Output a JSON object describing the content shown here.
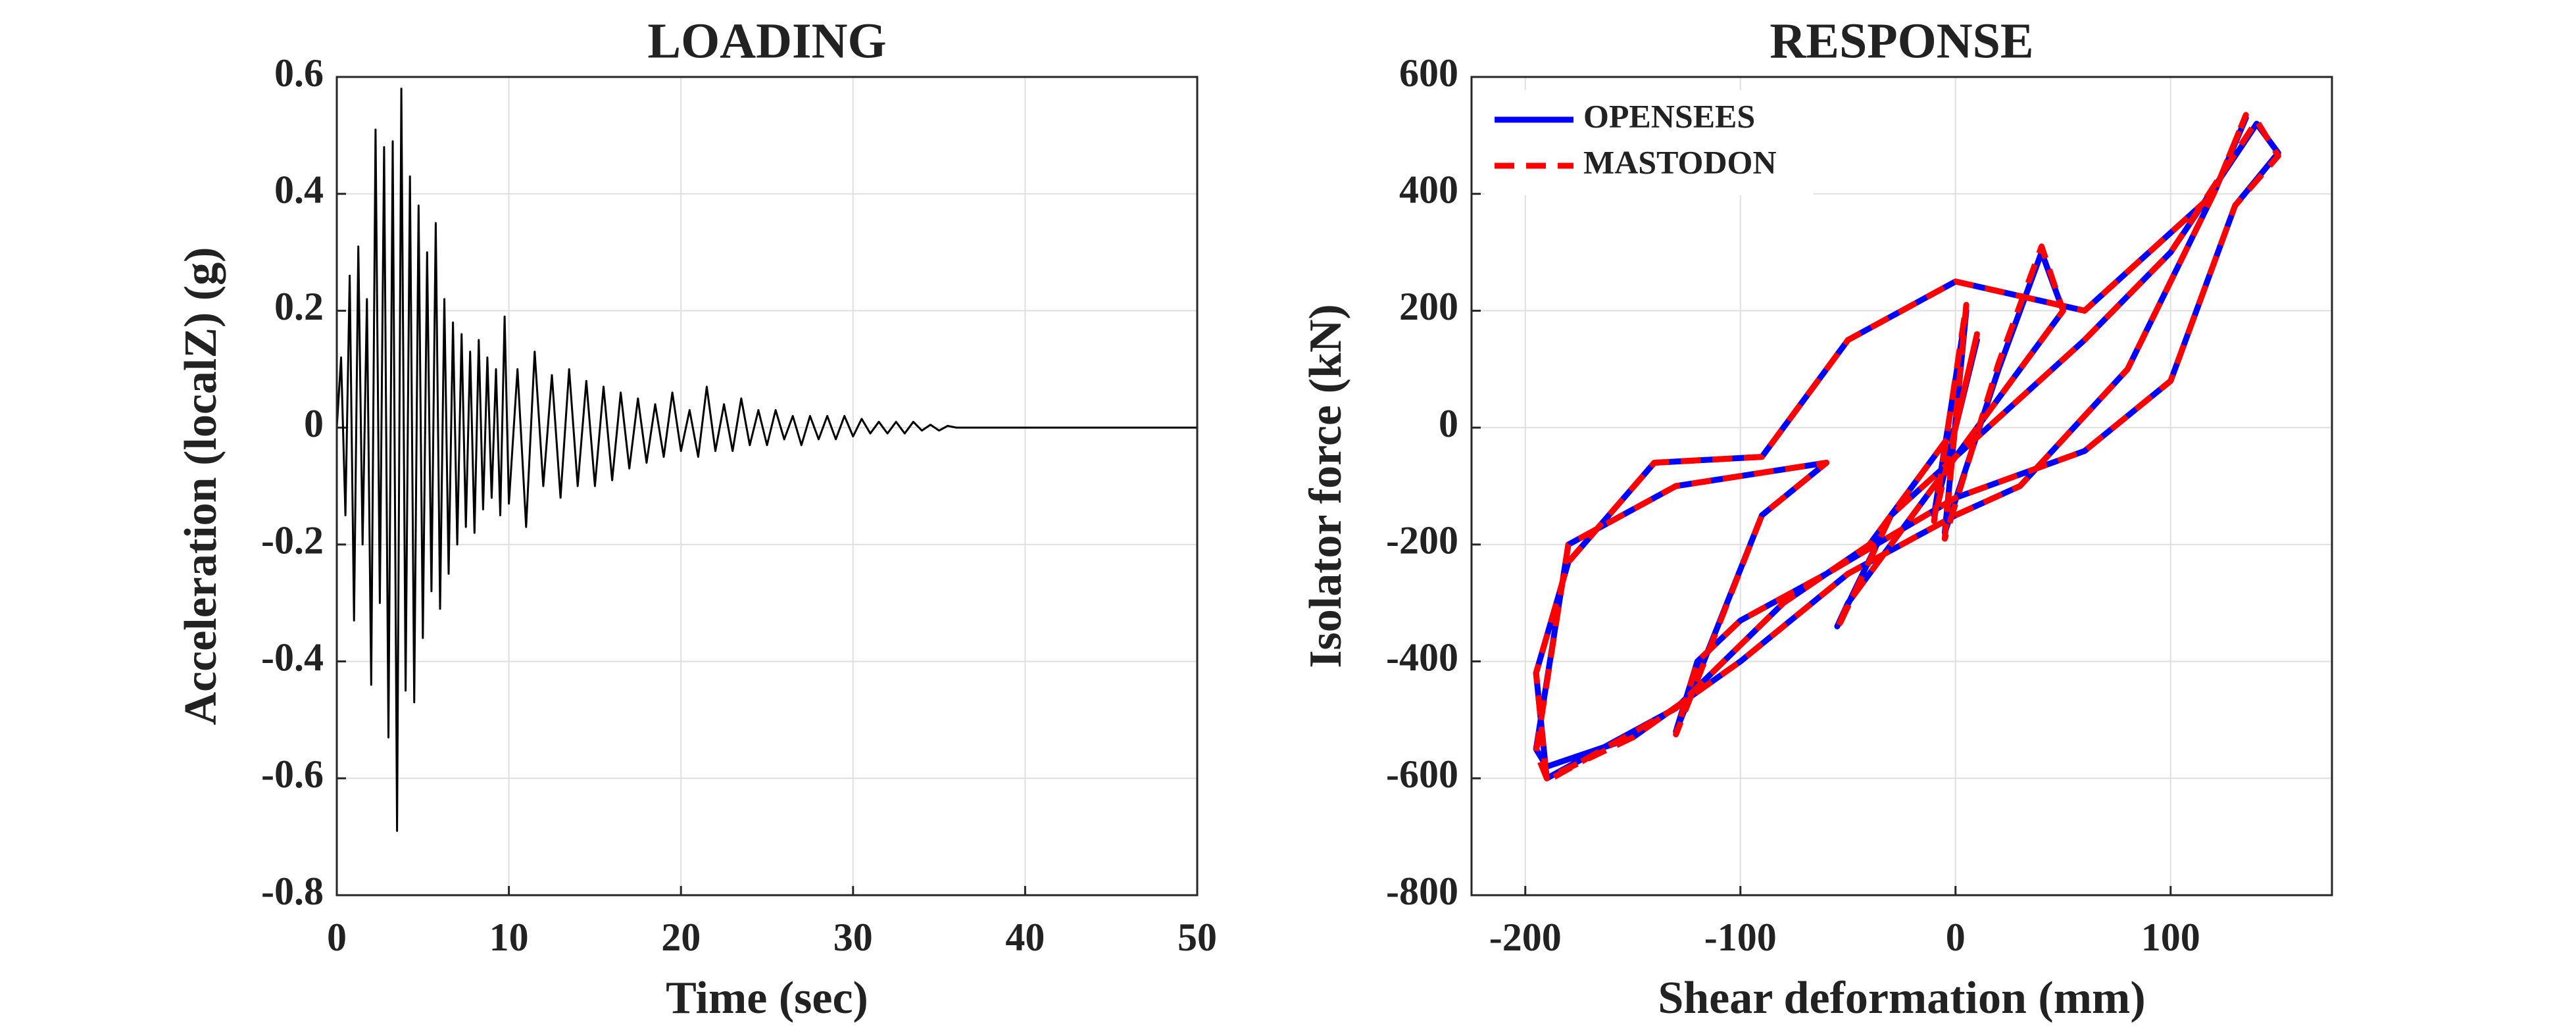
{
  "chart_data": [
    {
      "type": "line",
      "title": "LOADING",
      "xlabel": "Time (sec)",
      "ylabel": "Acceleration (localZ) (g)",
      "xlim": [
        0,
        50
      ],
      "xticks": [
        0,
        10,
        20,
        30,
        40,
        50
      ],
      "ylim": [
        -0.8,
        0.6
      ],
      "yticks": [
        -0.8,
        -0.6,
        -0.4,
        -0.2,
        0,
        0.2,
        0.4,
        0.6
      ],
      "grid": true,
      "x": [
        0,
        0.25,
        0.5,
        0.75,
        1,
        1.25,
        1.5,
        1.75,
        2,
        2.25,
        2.5,
        2.75,
        3,
        3.25,
        3.5,
        3.75,
        4,
        4.25,
        4.5,
        4.75,
        5,
        5.25,
        5.5,
        5.75,
        6,
        6.25,
        6.5,
        6.75,
        7,
        7.25,
        7.5,
        7.75,
        8,
        8.25,
        8.5,
        8.75,
        9,
        9.25,
        9.5,
        9.75,
        10,
        10.5,
        11,
        11.5,
        12,
        12.5,
        13,
        13.5,
        14,
        14.5,
        15,
        15.5,
        16,
        16.5,
        17,
        17.5,
        18,
        18.5,
        19,
        19.5,
        20,
        20.5,
        21,
        21.5,
        22,
        22.5,
        23,
        23.5,
        24,
        24.5,
        25,
        25.5,
        26,
        26.5,
        27,
        27.5,
        28,
        28.5,
        29,
        29.5,
        30,
        30.5,
        31,
        31.5,
        32,
        32.5,
        33,
        33.5,
        34,
        34.5,
        35,
        35.5,
        36,
        50
      ],
      "series": [
        {
          "name": null,
          "color": "#000000",
          "values": [
            0,
            0.12,
            -0.15,
            0.26,
            -0.33,
            0.31,
            -0.2,
            0.22,
            -0.44,
            0.51,
            -0.3,
            0.48,
            -0.53,
            0.49,
            -0.69,
            0.58,
            -0.45,
            0.43,
            -0.47,
            0.38,
            -0.36,
            0.3,
            -0.28,
            0.35,
            -0.31,
            0.22,
            -0.25,
            0.18,
            -0.2,
            0.16,
            -0.17,
            0.13,
            -0.18,
            0.15,
            -0.14,
            0.12,
            -0.12,
            0.1,
            -0.15,
            0.19,
            -0.13,
            0.1,
            -0.17,
            0.13,
            -0.1,
            0.09,
            -0.12,
            0.1,
            -0.1,
            0.08,
            -0.1,
            0.07,
            -0.09,
            0.06,
            -0.07,
            0.05,
            -0.06,
            0.04,
            -0.05,
            0.06,
            -0.04,
            0.03,
            -0.05,
            0.07,
            -0.04,
            0.04,
            -0.04,
            0.05,
            -0.03,
            0.03,
            -0.03,
            0.03,
            -0.02,
            0.02,
            -0.03,
            0.02,
            -0.02,
            0.02,
            -0.02,
            0.02,
            -0.015,
            0.015,
            -0.01,
            0.01,
            -0.01,
            0.01,
            -0.01,
            0.01,
            -0.005,
            0.005,
            -0.005,
            0.003,
            0,
            0
          ]
        }
      ]
    },
    {
      "type": "line",
      "title": "RESPONSE",
      "xlabel": "Shear deformation (mm)",
      "ylabel": "Isolator force (kN)",
      "xlim": [
        -225,
        175
      ],
      "xticks": [
        -200,
        -100,
        0,
        100
      ],
      "ylim": [
        -800,
        600
      ],
      "yticks": [
        -800,
        -600,
        -400,
        -200,
        0,
        200,
        400,
        600
      ],
      "grid": true,
      "legend": "upper left",
      "x": [
        0,
        10,
        -10,
        5,
        -5,
        20,
        40,
        50,
        -50,
        -55,
        -30,
        60,
        100,
        140,
        150,
        130,
        100,
        60,
        0,
        -60,
        -100,
        -120,
        -130,
        -90,
        -60,
        -130,
        -180,
        -195,
        -190,
        -150,
        -100,
        -50,
        0,
        30,
        80,
        120,
        135,
        120,
        60,
        0,
        -50,
        -90,
        -140,
        -180,
        -195,
        -190,
        -130,
        -80,
        -40,
        0
      ],
      "series": [
        {
          "name": "OPENSEES",
          "color": "#0000ff",
          "dash": false,
          "values": [
            0,
            150,
            -150,
            200,
            -180,
            100,
            300,
            200,
            -300,
            -340,
            -150,
            150,
            300,
            520,
            470,
            380,
            80,
            -40,
            -120,
            -250,
            -330,
            -400,
            -520,
            -150,
            -60,
            -100,
            -200,
            -550,
            -580,
            -530,
            -400,
            -250,
            -150,
            -100,
            100,
            400,
            530,
            400,
            200,
            250,
            150,
            -50,
            -60,
            -230,
            -420,
            -600,
            -480,
            -300,
            -200,
            0
          ]
        },
        {
          "name": "MASTODON",
          "color": "#ff0000",
          "dash": true,
          "values": [
            0,
            160,
            -160,
            210,
            -190,
            110,
            310,
            200,
            -300,
            -345,
            -150,
            150,
            300,
            525,
            465,
            380,
            80,
            -40,
            -120,
            -250,
            -330,
            -400,
            -525,
            -150,
            -60,
            -100,
            -200,
            -555,
            -600,
            -530,
            -400,
            -250,
            -150,
            -100,
            100,
            400,
            535,
            400,
            200,
            250,
            150,
            -50,
            -60,
            -230,
            -420,
            -605,
            -480,
            -300,
            -200,
            0
          ]
        }
      ]
    }
  ]
}
